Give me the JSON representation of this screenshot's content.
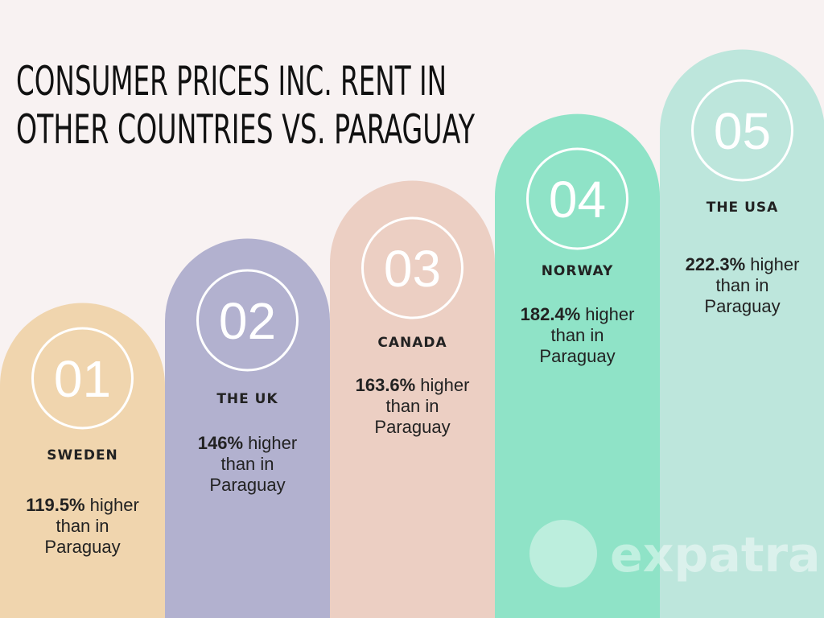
{
  "title": {
    "lines": [
      "CONSUMER PRICES INC. RENT IN",
      "OTHER COUNTRIES VS. PARAGUAY"
    ]
  },
  "items": [
    {
      "rank": "01",
      "country": "SWEDEN",
      "value": "119.5%",
      "text_lines": [
        "higher",
        "than in",
        "Paraguay"
      ]
    },
    {
      "rank": "02",
      "country": "THE UK",
      "value": "146%",
      "text_lines": [
        "higher",
        "than in",
        "Paraguay"
      ]
    },
    {
      "rank": "03",
      "country": "CANADA",
      "value": "163.6%",
      "text_lines": [
        "higher",
        "than in",
        "Paraguay"
      ]
    },
    {
      "rank": "04",
      "country": "NORWAY",
      "value": "182.4%",
      "text_lines": [
        "higher",
        "than in",
        "Paraguay"
      ]
    },
    {
      "rank": "05",
      "country": "THE USA",
      "value": "222.3%",
      "text_lines": [
        "higher",
        "than in",
        "Paraguay"
      ]
    }
  ],
  "watermark": "expatra"
}
